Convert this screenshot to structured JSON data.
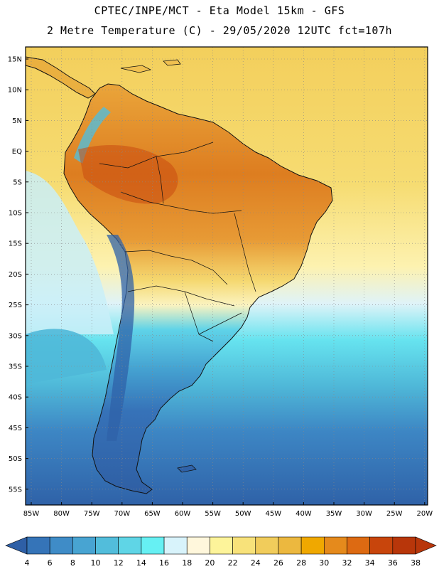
{
  "header": {
    "line1": "CPTEC/INPE/MCT -  Eta Model 15km - GFS",
    "line2": "2 Metre Temperature (C) - 29/05/2020 12UTC fct=107h"
  },
  "lat_labels": [
    "15N",
    "10N",
    "5N",
    "EQ",
    "5S",
    "10S",
    "15S",
    "20S",
    "25S",
    "30S",
    "35S",
    "40S",
    "45S",
    "50S",
    "55S"
  ],
  "lon_labels": [
    "85W",
    "80W",
    "75W",
    "70W",
    "65W",
    "60W",
    "55W",
    "50W",
    "45W",
    "40W",
    "35W",
    "30W",
    "25W",
    "20W"
  ],
  "colorbar": {
    "labels": [
      "4",
      "6",
      "8",
      "10",
      "12",
      "14",
      "16",
      "18",
      "20",
      "22",
      "24",
      "26",
      "28",
      "30",
      "32",
      "34",
      "36",
      "38"
    ],
    "colors": [
      "#2e5fa6",
      "#3574b8",
      "#3f8cc7",
      "#48a4d2",
      "#52bddb",
      "#5fd5e6",
      "#66f0f3",
      "#d8f3fb",
      "#fff7dc",
      "#fdf49a",
      "#f8e27a",
      "#f1cc5b",
      "#ecb83f",
      "#f0a800",
      "#e58a1c",
      "#dd6a12",
      "#c8450c",
      "#b8360a"
    ]
  },
  "colors": {
    "ocean_north": "#f4d160",
    "ocean_mid": "#52bddb",
    "ocean_south": "#2e5fa6",
    "land_hot": "#d86a1a",
    "land_cold": "#3574b8"
  }
}
